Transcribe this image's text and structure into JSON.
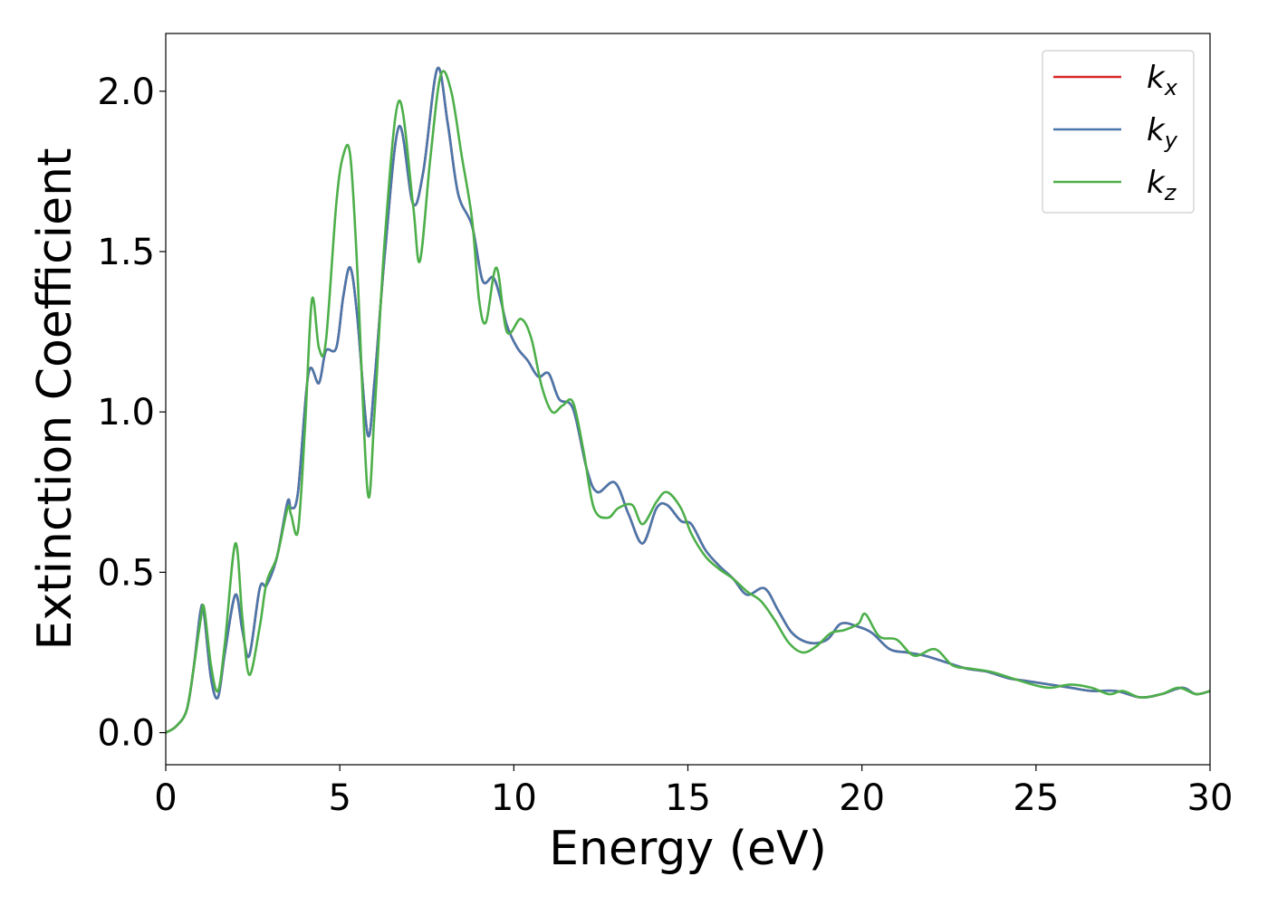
{
  "chart_data": {
    "type": "line",
    "xlabel": "Energy (eV)",
    "ylabel": "Extinction Coefficient",
    "xlim": [
      0,
      30
    ],
    "ylim": [
      -0.1,
      2.18
    ],
    "xticks": [
      0,
      5,
      10,
      15,
      20,
      25,
      30
    ],
    "xtick_labels": [
      "0",
      "5",
      "10",
      "15",
      "20",
      "25",
      "30"
    ],
    "yticks": [
      0.0,
      0.5,
      1.0,
      1.5,
      2.0
    ],
    "ytick_labels": [
      "0.0",
      "0.5",
      "1.0",
      "1.5",
      "2.0"
    ],
    "grid": false,
    "legend_position": "top-right",
    "series": [
      {
        "name": "k_x",
        "label_base": "k",
        "label_sub": "x",
        "color": "#d62728",
        "x": [
          0,
          0.3,
          0.6,
          0.8,
          1.0,
          1.1,
          1.3,
          1.5,
          1.7,
          2.0,
          2.2,
          2.4,
          2.7,
          2.9,
          3.2,
          3.5,
          3.6,
          3.8,
          4.1,
          4.4,
          4.6,
          4.9,
          5.1,
          5.3,
          5.5,
          5.8,
          6.0,
          6.3,
          6.7,
          7.1,
          7.4,
          7.8,
          8.1,
          8.4,
          8.8,
          9.1,
          9.4,
          9.6,
          9.8,
          10.1,
          10.4,
          10.7,
          11.0,
          11.3,
          11.7,
          12.1,
          12.4,
          12.9,
          13.3,
          13.7,
          14.1,
          14.4,
          14.8,
          15.1,
          15.5,
          15.9,
          16.3,
          16.7,
          17.2,
          17.6,
          18.0,
          18.5,
          19.0,
          19.4,
          19.9,
          20.3,
          20.8,
          21.3,
          21.8,
          22.4,
          23.0,
          23.6,
          24.2,
          24.8,
          25.4,
          26.0,
          26.6,
          27.3,
          28.0,
          28.6,
          29.2,
          29.6,
          30.0
        ],
        "y": [
          0.0,
          0.02,
          0.07,
          0.2,
          0.38,
          0.37,
          0.17,
          0.11,
          0.25,
          0.43,
          0.32,
          0.24,
          0.45,
          0.46,
          0.55,
          0.72,
          0.7,
          0.75,
          1.12,
          1.09,
          1.19,
          1.2,
          1.36,
          1.45,
          1.3,
          0.93,
          1.1,
          1.5,
          1.89,
          1.65,
          1.75,
          2.07,
          1.9,
          1.68,
          1.58,
          1.41,
          1.42,
          1.36,
          1.27,
          1.2,
          1.16,
          1.11,
          1.12,
          1.04,
          1.01,
          0.82,
          0.75,
          0.78,
          0.68,
          0.59,
          0.7,
          0.71,
          0.66,
          0.65,
          0.57,
          0.52,
          0.48,
          0.43,
          0.45,
          0.38,
          0.31,
          0.28,
          0.29,
          0.34,
          0.33,
          0.31,
          0.26,
          0.25,
          0.24,
          0.22,
          0.2,
          0.19,
          0.17,
          0.16,
          0.15,
          0.14,
          0.13,
          0.13,
          0.11,
          0.12,
          0.14,
          0.12,
          0.13
        ]
      },
      {
        "name": "k_y",
        "label_base": "k",
        "label_sub": "y",
        "color": "#4a77ab",
        "x": [
          0,
          0.3,
          0.6,
          0.8,
          1.0,
          1.1,
          1.3,
          1.5,
          1.7,
          2.0,
          2.2,
          2.4,
          2.7,
          2.9,
          3.2,
          3.5,
          3.6,
          3.8,
          4.1,
          4.4,
          4.6,
          4.9,
          5.1,
          5.3,
          5.5,
          5.8,
          6.0,
          6.3,
          6.7,
          7.1,
          7.4,
          7.8,
          8.1,
          8.4,
          8.8,
          9.1,
          9.4,
          9.6,
          9.8,
          10.1,
          10.4,
          10.7,
          11.0,
          11.3,
          11.7,
          12.1,
          12.4,
          12.9,
          13.3,
          13.7,
          14.1,
          14.4,
          14.8,
          15.1,
          15.5,
          15.9,
          16.3,
          16.7,
          17.2,
          17.6,
          18.0,
          18.5,
          19.0,
          19.4,
          19.9,
          20.3,
          20.8,
          21.3,
          21.8,
          22.4,
          23.0,
          23.6,
          24.2,
          24.8,
          25.4,
          26.0,
          26.6,
          27.3,
          28.0,
          28.6,
          29.2,
          29.6,
          30.0
        ],
        "y": [
          0.0,
          0.02,
          0.07,
          0.2,
          0.38,
          0.37,
          0.17,
          0.11,
          0.25,
          0.43,
          0.32,
          0.24,
          0.45,
          0.46,
          0.55,
          0.72,
          0.7,
          0.75,
          1.12,
          1.09,
          1.19,
          1.2,
          1.36,
          1.45,
          1.3,
          0.93,
          1.1,
          1.5,
          1.89,
          1.65,
          1.75,
          2.07,
          1.9,
          1.68,
          1.58,
          1.41,
          1.42,
          1.36,
          1.27,
          1.2,
          1.16,
          1.11,
          1.12,
          1.04,
          1.01,
          0.82,
          0.75,
          0.78,
          0.68,
          0.59,
          0.7,
          0.71,
          0.66,
          0.65,
          0.57,
          0.52,
          0.48,
          0.43,
          0.45,
          0.38,
          0.31,
          0.28,
          0.29,
          0.34,
          0.33,
          0.31,
          0.26,
          0.25,
          0.24,
          0.22,
          0.2,
          0.19,
          0.17,
          0.16,
          0.15,
          0.14,
          0.13,
          0.13,
          0.11,
          0.12,
          0.14,
          0.12,
          0.13
        ]
      },
      {
        "name": "k_z",
        "label_base": "k",
        "label_sub": "z",
        "color": "#4daf4a",
        "x": [
          0,
          0.3,
          0.6,
          0.8,
          1.0,
          1.1,
          1.3,
          1.5,
          1.7,
          2.0,
          2.2,
          2.4,
          2.7,
          2.9,
          3.2,
          3.5,
          3.6,
          3.8,
          4.0,
          4.2,
          4.4,
          4.6,
          4.9,
          5.1,
          5.3,
          5.5,
          5.8,
          6.0,
          6.3,
          6.7,
          7.1,
          7.3,
          7.6,
          7.9,
          8.2,
          8.5,
          8.8,
          9.0,
          9.2,
          9.5,
          9.8,
          10.2,
          10.5,
          10.8,
          11.1,
          11.4,
          11.7,
          12.0,
          12.3,
          12.7,
          13.0,
          13.4,
          13.7,
          14.1,
          14.4,
          14.8,
          15.1,
          15.5,
          15.9,
          16.3,
          16.7,
          17.1,
          17.5,
          17.9,
          18.3,
          18.7,
          19.1,
          19.5,
          19.9,
          20.1,
          20.5,
          21.0,
          21.5,
          22.1,
          22.6,
          23.1,
          23.7,
          24.3,
          24.9,
          25.4,
          26.0,
          26.6,
          27.1,
          27.5,
          28.0,
          28.6,
          29.1,
          29.6,
          30.0
        ],
        "y": [
          0.0,
          0.02,
          0.07,
          0.2,
          0.35,
          0.39,
          0.21,
          0.13,
          0.28,
          0.59,
          0.36,
          0.18,
          0.33,
          0.47,
          0.55,
          0.7,
          0.68,
          0.63,
          0.95,
          1.35,
          1.2,
          1.22,
          1.65,
          1.8,
          1.8,
          1.45,
          0.75,
          1.0,
          1.55,
          1.97,
          1.65,
          1.47,
          1.79,
          2.05,
          2.0,
          1.8,
          1.6,
          1.35,
          1.28,
          1.45,
          1.25,
          1.29,
          1.23,
          1.08,
          1.0,
          1.02,
          1.03,
          0.88,
          0.7,
          0.67,
          0.7,
          0.71,
          0.65,
          0.72,
          0.75,
          0.7,
          0.62,
          0.55,
          0.51,
          0.48,
          0.44,
          0.41,
          0.35,
          0.28,
          0.25,
          0.27,
          0.31,
          0.32,
          0.34,
          0.37,
          0.3,
          0.29,
          0.24,
          0.26,
          0.21,
          0.2,
          0.19,
          0.17,
          0.15,
          0.14,
          0.15,
          0.14,
          0.12,
          0.13,
          0.11,
          0.12,
          0.14,
          0.12,
          0.13
        ]
      }
    ]
  }
}
